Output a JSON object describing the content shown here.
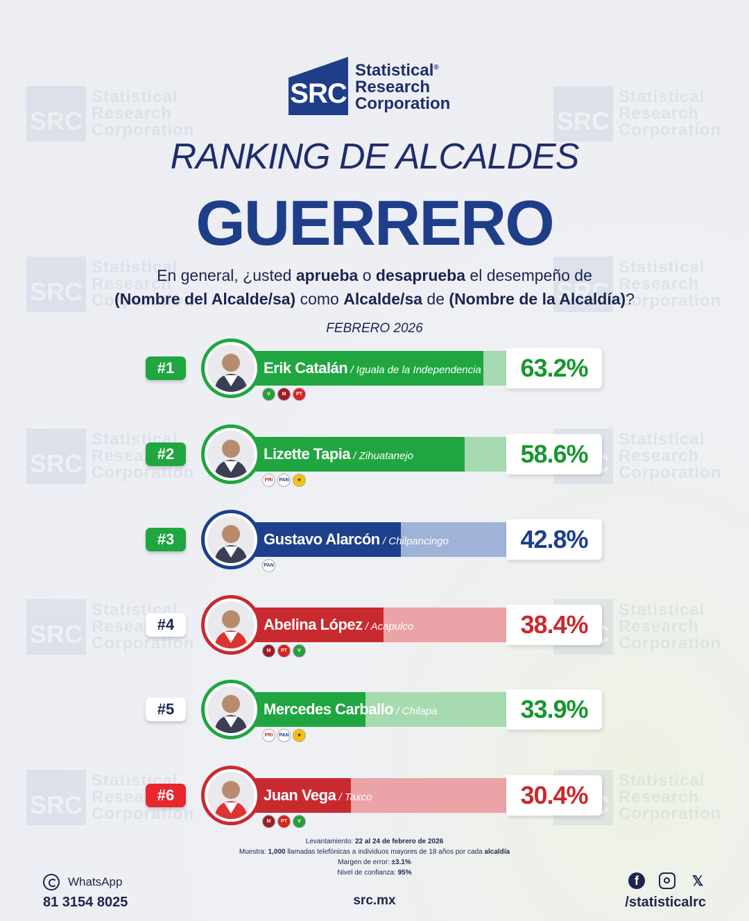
{
  "brand": {
    "mark": "SRC",
    "name_lines": [
      "Statistical",
      "Research",
      "Corporation"
    ],
    "registered": "®",
    "colors": {
      "navy": "#1f3e8a",
      "dark": "#1f2d6b"
    }
  },
  "header": {
    "title": "RANKING DE ALCALDES",
    "state": "GUERRERO",
    "question": {
      "line1": [
        {
          "t": "En general, ¿usted ",
          "b": false
        },
        {
          "t": "aprueba",
          "b": true
        },
        {
          "t": " o ",
          "b": false
        },
        {
          "t": "desaprueba",
          "b": true
        },
        {
          "t": " el desempeño de",
          "b": false
        }
      ],
      "line2": [
        {
          "t": "(Nombre del Alcalde/sa)",
          "b": true
        },
        {
          "t": " como ",
          "b": false
        },
        {
          "t": "Alcalde/sa",
          "b": true
        },
        {
          "t": " de ",
          "b": false
        },
        {
          "t": "(Nombre de la Alcaldía)",
          "b": true
        },
        {
          "t": "?",
          "b": false
        }
      ]
    },
    "period": "FEBRERO 2026"
  },
  "chart_data": {
    "type": "bar",
    "orientation": "horizontal",
    "unit": "%",
    "xlim": [
      0,
      100
    ],
    "items": [
      {
        "rank": "#1",
        "name": "Erik Catalán",
        "city": "Iguala de la Independencia",
        "value": 63.2,
        "label": "63.2%",
        "theme": "green",
        "rank_style": "filled",
        "parties": [
          "VERDE",
          "MORENA",
          "PT"
        ]
      },
      {
        "rank": "#2",
        "name": "Lizette Tapia",
        "city": "Zihuatanejo",
        "value": 58.6,
        "label": "58.6%",
        "theme": "green",
        "rank_style": "filled",
        "parties": [
          "PRI",
          "PAN",
          "PRD"
        ]
      },
      {
        "rank": "#3",
        "name": "Gustavo Alarcón",
        "city": "Chilpancingo",
        "value": 42.8,
        "label": "42.8%",
        "theme": "navy",
        "rank_style": "filled",
        "parties": [
          "PAN"
        ]
      },
      {
        "rank": "#4",
        "name": "Abelina López",
        "city": "Acapulco",
        "value": 38.4,
        "label": "38.4%",
        "theme": "red",
        "rank_style": "outline",
        "parties": [
          "MORENA",
          "PT",
          "VERDE"
        ]
      },
      {
        "rank": "#5",
        "name": "Mercedes Carballo",
        "city": "Chilapa",
        "value": 33.9,
        "label": "33.9%",
        "theme": "green",
        "rank_style": "outline",
        "parties": [
          "PRI",
          "PAN",
          "PRD"
        ]
      },
      {
        "rank": "#6",
        "name": "Juan Vega",
        "city": "Taxco",
        "value": 30.4,
        "label": "30.4%",
        "theme": "red",
        "rank_style": "red",
        "parties": [
          "MORENA",
          "PT",
          "VERDE"
        ]
      }
    ],
    "themes": {
      "green": {
        "fill": "#1fa640",
        "track": "#a7dab0",
        "text": "#18962f",
        "ring": "#1fa640"
      },
      "navy": {
        "fill": "#1d3f8c",
        "track": "#9fb2d8",
        "text": "#1d3f8c",
        "ring": "#1d3f8c"
      },
      "red": {
        "fill": "#c92a2f",
        "track": "#eaa3a6",
        "text": "#c92a2f",
        "ring": "#c92a2f"
      }
    }
  },
  "footer": {
    "notes": [
      {
        "label": "Levantamiento: ",
        "value": "22 al 24 de febrero de 2026"
      },
      {
        "label": "Muestra: ",
        "value": "1,000",
        "rest": " llamadas telefónicas a individuos mayores de 18 años por cada ",
        "value2": "alcaldía"
      },
      {
        "label": "Margen de error: ",
        "value": "±3.1%"
      },
      {
        "label": "Nivel de confianza: ",
        "value": "95%"
      }
    ],
    "whatsapp_label": "WhatsApp",
    "whatsapp_number": "81 3154 8025",
    "website": "src.mx",
    "social_handle": "/statisticalrc"
  }
}
